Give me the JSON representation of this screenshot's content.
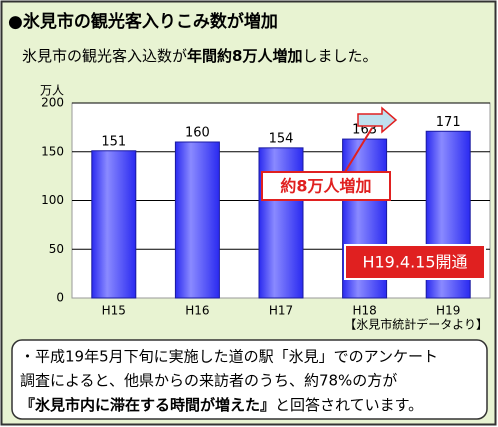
{
  "chart_data": {
    "type": "bar",
    "title": "●氷見市の観光客入りこみ数が増加",
    "subtitle": [
      "氷見市の観光客入込数が",
      "年間約8万人増加",
      "しました。"
    ],
    "y_label": "万人",
    "categories": [
      "H15",
      "H16",
      "H17",
      "H18",
      "H19"
    ],
    "values": [
      151,
      160,
      154,
      163,
      171
    ],
    "color": "#2a2af0",
    "ylim": [
      0,
      200
    ],
    "yticks": [
      0,
      50,
      100,
      150,
      200
    ],
    "grid": true,
    "annotations": [
      "約8万人増加",
      "H19.4.15開通"
    ],
    "source": "【氷見市統計データより】"
  },
  "note": {
    "lines": [
      "・平成19年5月下旬に実施した道の駅「氷見」でのアンケート",
      "調査によると、他県からの来訪者のうち、約78%の方が"
    ],
    "last_line": [
      "『氷見市内に滞在する時間が増えた』",
      "と回答されています。"
    ]
  }
}
